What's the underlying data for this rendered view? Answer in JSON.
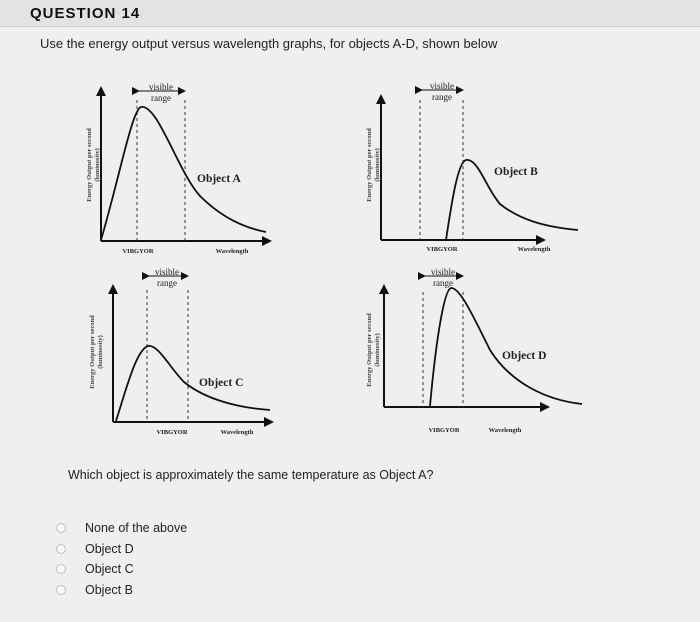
{
  "question": {
    "title": "QUESTION 14",
    "prompt": "Use the energy output versus wavelength graphs, for objects A-D, shown below",
    "question_text": "Which object is approximately the same temperature as Object A?"
  },
  "graphs": [
    {
      "object_label": "Object A",
      "visible_label": "visible",
      "range_label": "range",
      "spectrum_label": "VIBGYOR",
      "x_label": "Wavelength",
      "y_label": "Energy Output per second",
      "y_sublabel": "(luminosity)"
    },
    {
      "object_label": "Object B",
      "visible_label": "visible",
      "range_label": "range",
      "spectrum_label": "VIBGYOR",
      "x_label": "Wavelength",
      "y_label": "Energy Output per second",
      "y_sublabel": "(luminosity)"
    },
    {
      "object_label": "Object C",
      "visible_label": "visible",
      "range_label": "range",
      "spectrum_label": "VIBGYOR",
      "x_label": "Wavelength",
      "y_label": "Energy Output per second",
      "y_sublabel": "(luminosity)"
    },
    {
      "object_label": "Object D",
      "visible_label": "visible",
      "range_label": "range",
      "spectrum_label": "VIBGYOR",
      "x_label": "Wavelength",
      "y_label": "Energy Output per second",
      "y_sublabel": "(luminosity)"
    }
  ],
  "options": [
    {
      "label": "None of the above",
      "selected": false
    },
    {
      "label": "Object D",
      "selected": false
    },
    {
      "label": "Object C",
      "selected": false
    },
    {
      "label": "Object B",
      "selected": false
    }
  ]
}
